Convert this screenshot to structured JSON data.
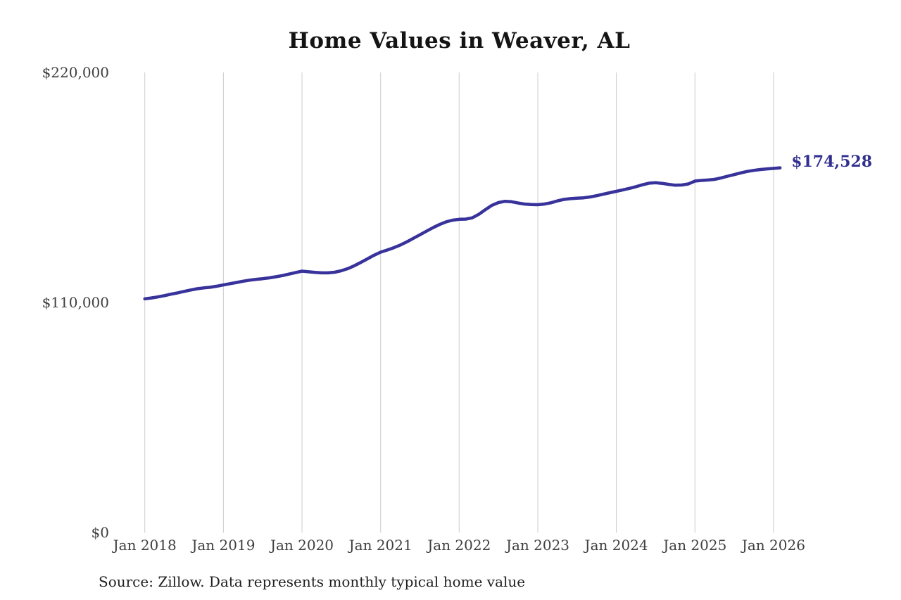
{
  "page": {
    "background": "#ffffff"
  },
  "chart": {
    "title": "Home Values in Weaver, AL",
    "end_label": "$174,528",
    "source": "Source: Zillow. Data represents monthly typical home value"
  },
  "chart_data": {
    "type": "line",
    "title": "Home Values in Weaver, AL",
    "series_name": "Monthly typical home value",
    "x_start": "2018-01",
    "frequency": "monthly",
    "values": [
      111900,
      112300,
      112800,
      113400,
      114100,
      114700,
      115400,
      116100,
      116700,
      117100,
      117400,
      117900,
      118500,
      119100,
      119700,
      120300,
      120800,
      121200,
      121500,
      121900,
      122400,
      123000,
      123700,
      124400,
      125100,
      124800,
      124500,
      124300,
      124300,
      124600,
      125300,
      126300,
      127700,
      129300,
      131000,
      132700,
      134200,
      135200,
      136300,
      137600,
      139100,
      140800,
      142500,
      144200,
      145900,
      147400,
      148700,
      149500,
      149900,
      150000,
      150600,
      152300,
      154500,
      156600,
      157900,
      158500,
      158300,
      157700,
      157200,
      157000,
      156900,
      157200,
      157800,
      158700,
      159400,
      159800,
      160000,
      160200,
      160600,
      161200,
      161900,
      162600,
      163300,
      164000,
      164700,
      165500,
      166400,
      167200,
      167400,
      167100,
      166600,
      166200,
      166300,
      166800,
      168200,
      168500,
      168700,
      169000,
      169700,
      170500,
      171300,
      172100,
      172800,
      173300,
      173700,
      174000,
      174250,
      174528
    ],
    "final_value": 174528,
    "final_value_label": "$174,528",
    "ylim": [
      0,
      220000
    ],
    "y_ticks": [
      {
        "value": 220000,
        "label": "$220,000"
      },
      {
        "value": 110000,
        "label": "$110,000"
      },
      {
        "value": 0,
        "label": "$0"
      }
    ],
    "x_ticks": [
      {
        "month_index": 0,
        "label": "Jan 2018"
      },
      {
        "month_index": 12,
        "label": "Jan 2019"
      },
      {
        "month_index": 24,
        "label": "Jan 2020"
      },
      {
        "month_index": 36,
        "label": "Jan 2021"
      },
      {
        "month_index": 48,
        "label": "Jan 2022"
      },
      {
        "month_index": 60,
        "label": "Jan 2023"
      },
      {
        "month_index": 72,
        "label": "Jan 2024"
      },
      {
        "month_index": 84,
        "label": "Jan 2025"
      },
      {
        "month_index": 96,
        "label": "Jan 2026"
      }
    ],
    "grid": "vertical-only",
    "legend": "none",
    "line_color": "#38329b",
    "grid_color": "#cccccc",
    "end_label_color": "#32308f",
    "tick_label_color": "#3f3f3f"
  }
}
